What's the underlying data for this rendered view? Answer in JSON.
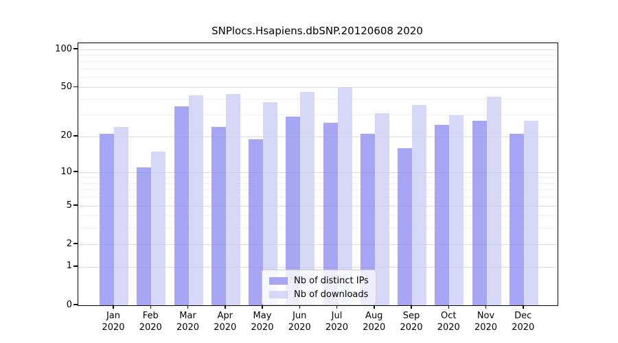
{
  "chart_data": {
    "type": "bar",
    "title": "SNPlocs.Hsapiens.dbSNP.20120608 2020",
    "categories": [
      "Jan",
      "Feb",
      "Mar",
      "Apr",
      "May",
      "Jun",
      "Jul",
      "Aug",
      "Sep",
      "Oct",
      "Nov",
      "Dec"
    ],
    "category_year": "2020",
    "series": [
      {
        "name": "Nb of distinct IPs",
        "key": "distinct-ips",
        "color": "rgba(146,146,242,0.82)",
        "values": [
          21,
          11,
          35,
          24,
          19,
          29,
          26,
          21,
          16,
          25,
          27,
          21
        ]
      },
      {
        "name": "Nb of downloads",
        "key": "downloads",
        "color": "rgba(206,206,246,0.82)",
        "values": [
          24,
          15,
          43,
          44,
          38,
          46,
          50,
          31,
          36,
          30,
          42,
          27
        ]
      }
    ],
    "y_axis": {
      "scale": "log1p",
      "ticks": [
        0,
        1,
        2,
        5,
        10,
        20,
        50,
        100
      ],
      "minor_ticks": [
        3,
        4,
        6,
        7,
        8,
        9,
        30,
        40,
        60,
        70,
        80,
        90
      ],
      "ylim": [
        0,
        112
      ]
    },
    "grid": {
      "major_color": "#dcdcdc",
      "minor_color": "#f0f0f0",
      "orientation": "horizontal"
    },
    "legend_position": "bottom-center",
    "axis_color": "#000000",
    "background": "#ffffff"
  }
}
